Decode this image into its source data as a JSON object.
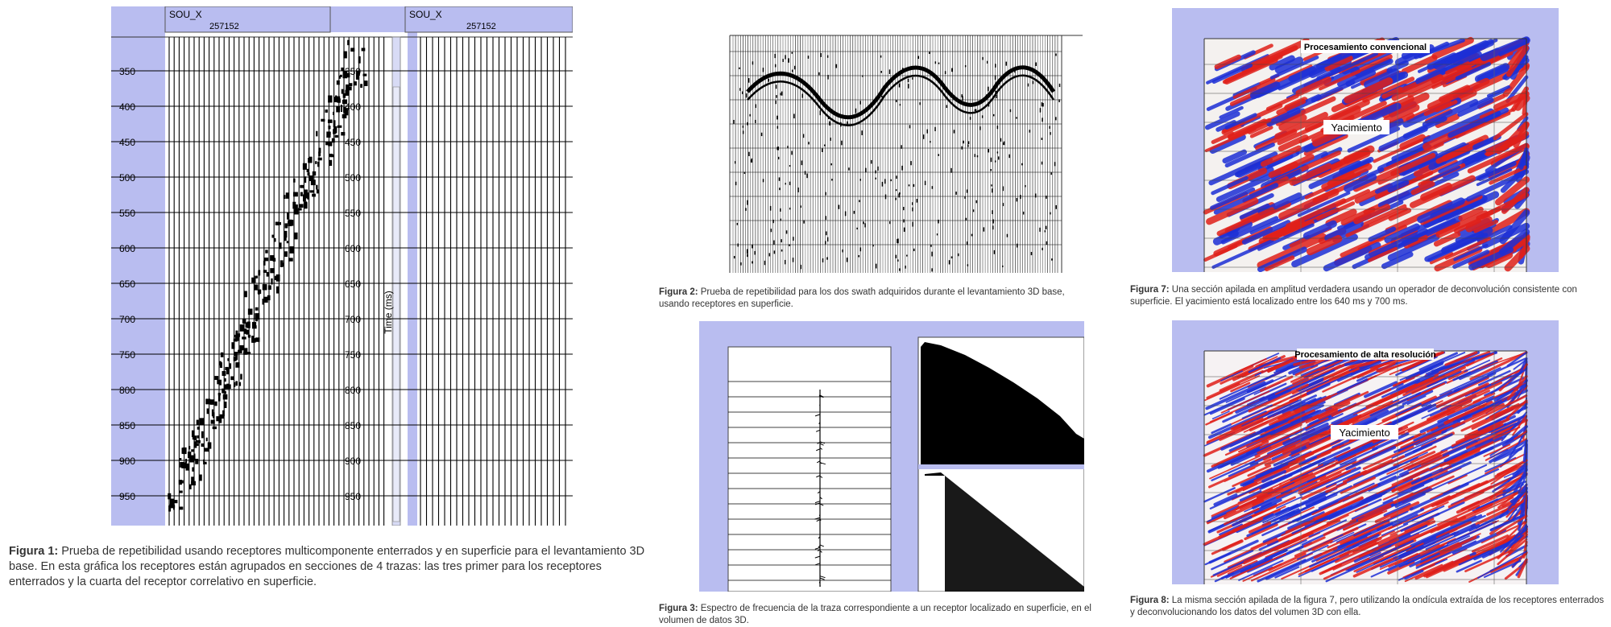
{
  "figure1": {
    "header_label": "SOU_X",
    "header_value": "257152",
    "y_ticks": [
      "350",
      "400",
      "450",
      "500",
      "550",
      "600",
      "650",
      "700",
      "750",
      "800",
      "850",
      "900",
      "950"
    ],
    "y_axis_label": "Time (ms)",
    "caption_label": "Figura 1:",
    "caption_text": "Prueba de repetibilidad usando receptores multicomponente enterrados y en superficie para el levantamiento 3D base. En esta gráfica los receptores están agrupados en secciones de 4 trazas: las tres primer para los receptores enterrados y la cuarta del receptor correlativo en superficie."
  },
  "figure2": {
    "caption_label": "Figura 2:",
    "caption_text": "Prueba de repetibilidad para los dos swath adquiridos durante el levantamiento 3D base, usando receptores en superficie."
  },
  "figure3": {
    "caption_label": "Figura 3:",
    "caption_text": "Espectro de frecuencia de la traza correspondiente a un receptor localizado en superficie, en el volumen de datos 3D."
  },
  "figure7": {
    "inner_title": "Procesamiento convencional",
    "annotation": "Yacimiento",
    "caption_label": "Figura 7:",
    "caption_text": "Una sección apilada en amplitud verdadera usando un operador de deconvolución consistente con superficie. El yacimiento está localizado entre los 640 ms y 700 ms."
  },
  "figure8": {
    "inner_title": "Procesamiento de alta resolución",
    "annotation": "Yacimiento",
    "caption_label": "Figura 8:",
    "caption_text": "La misma sección apilada de la figura 7, pero utilizando la ondícula extraída de los receptores enterrados y deconvolucionando los datos del volumen 3D con ella."
  },
  "colors": {
    "lavender": "#b9bdf0",
    "seismic_red": "#e0201a",
    "seismic_blue": "#1d2fd6"
  }
}
